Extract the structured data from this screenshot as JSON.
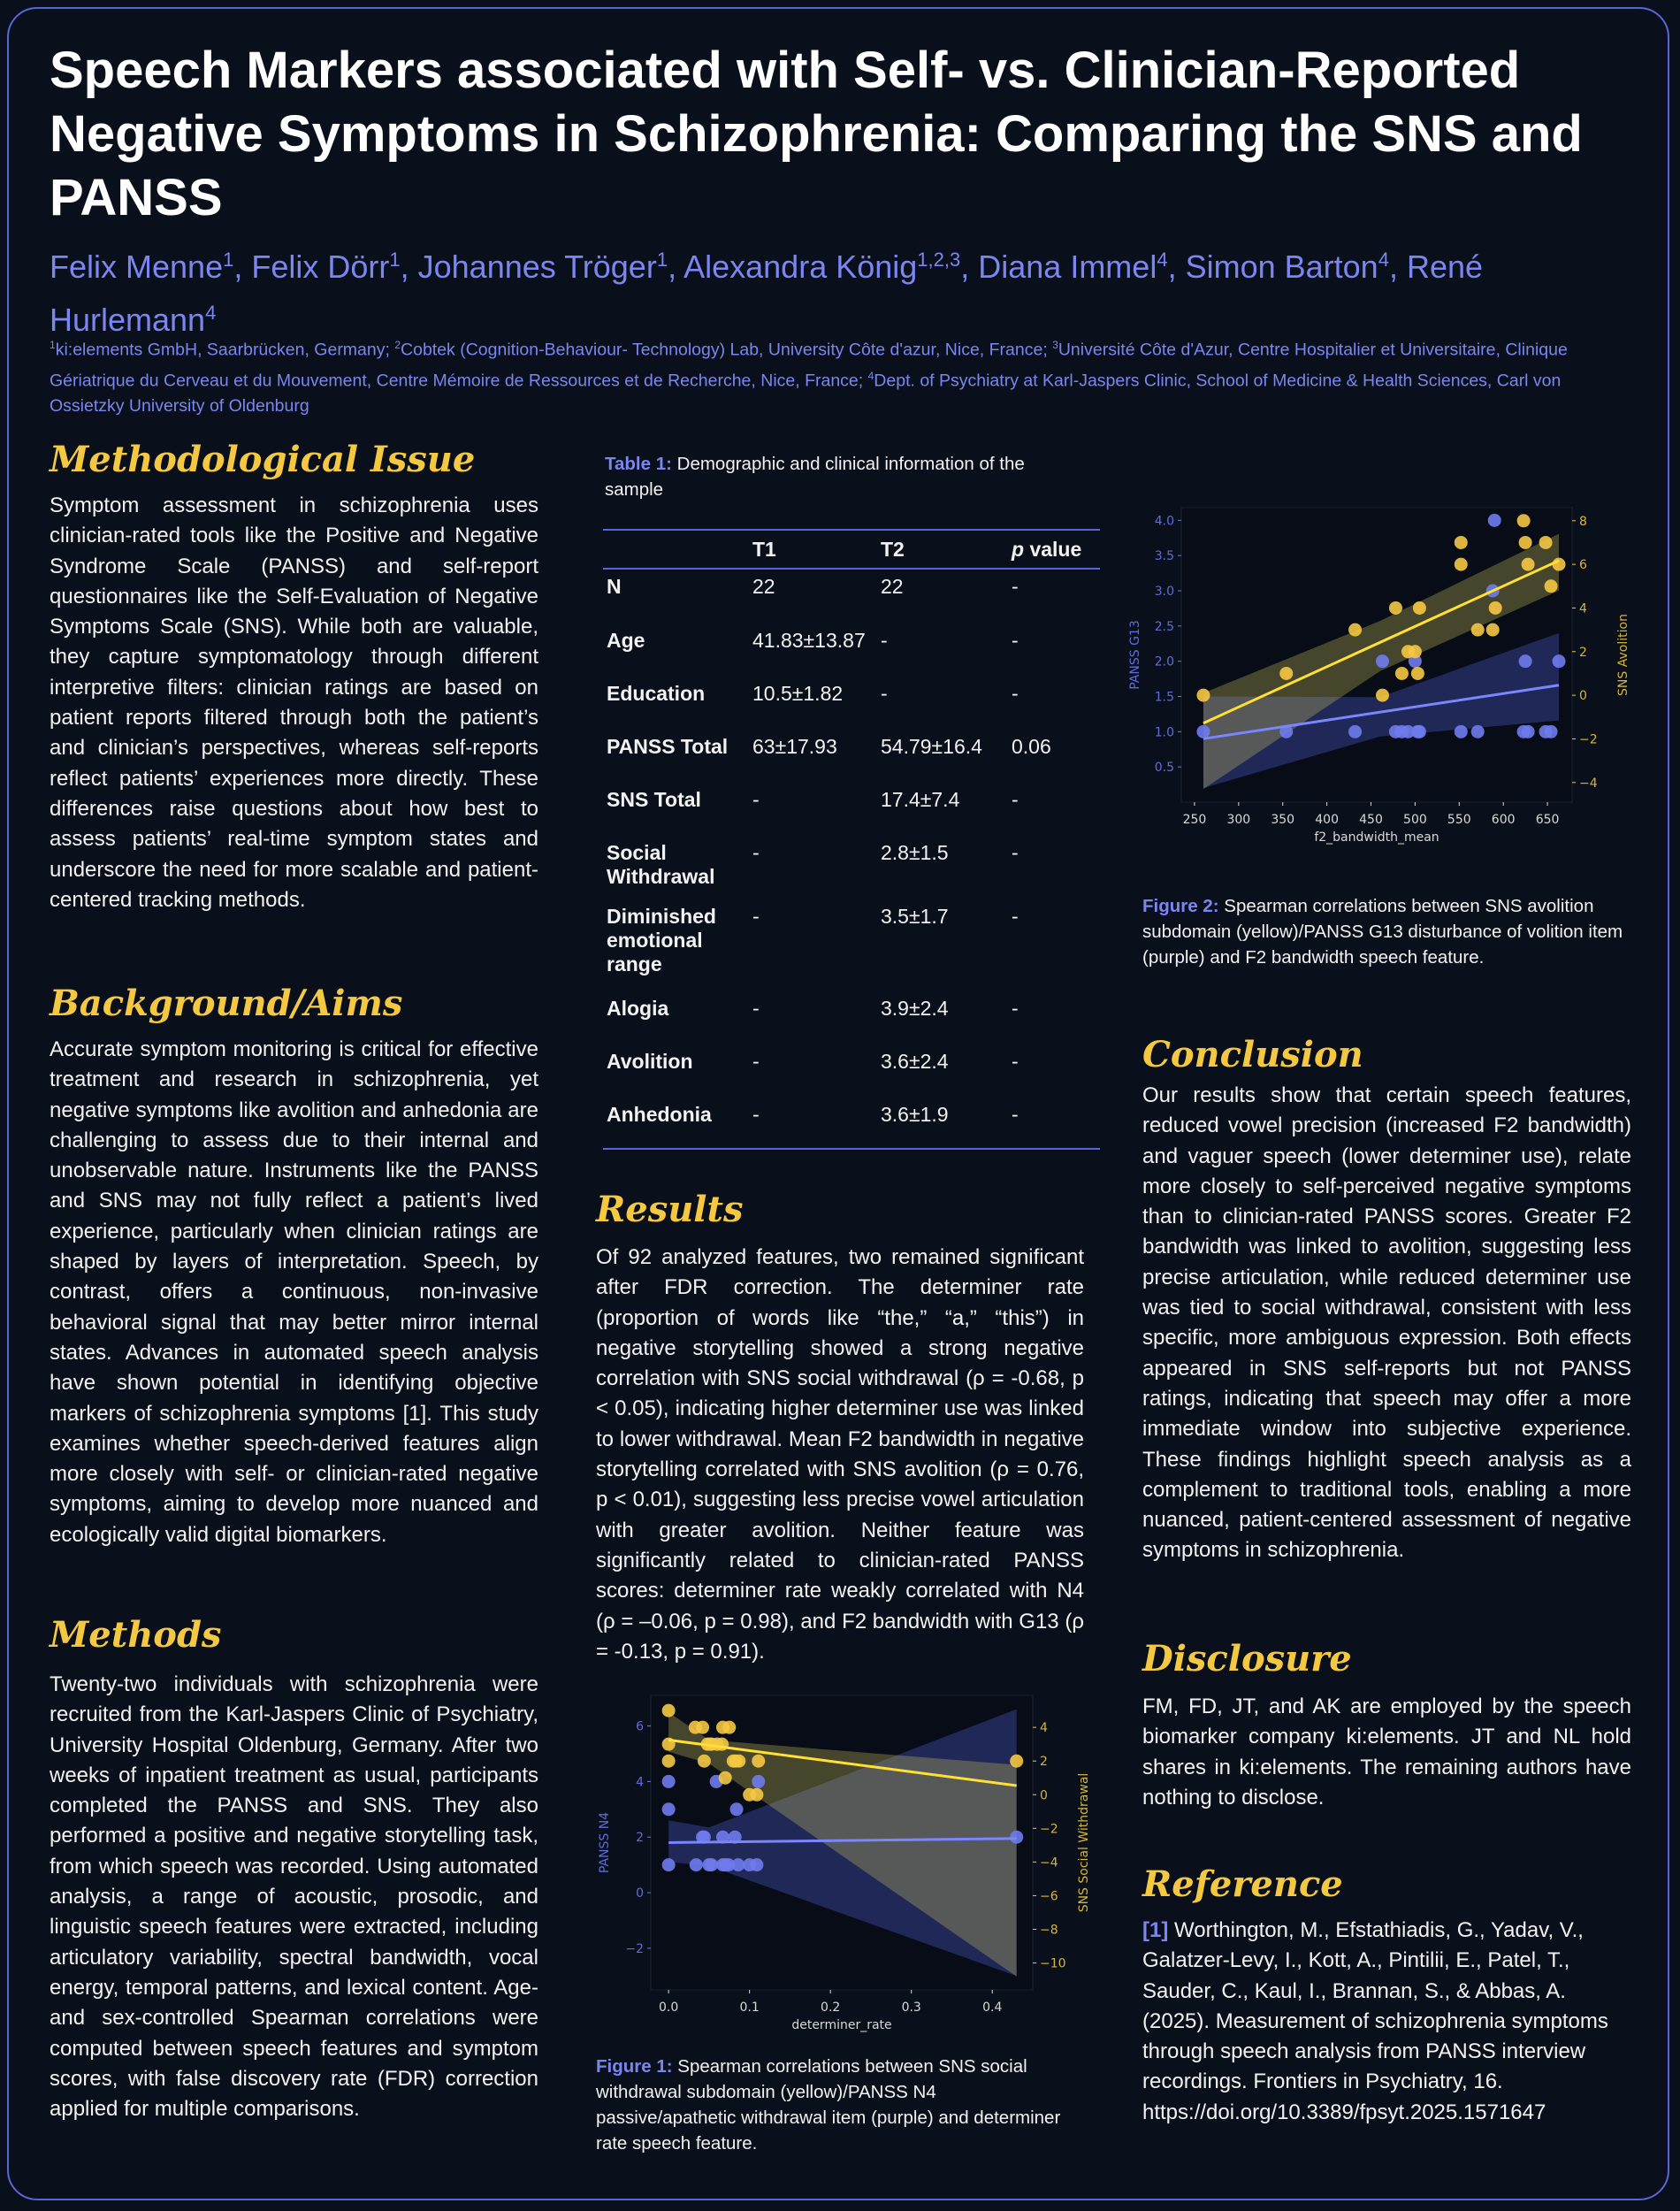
{
  "title": "Speech Markers associated with Self- vs. Clinician-Reported Negative Symptoms in Schizophrenia: Comparing the SNS and PANSS",
  "authors": [
    {
      "name": "Felix Menne",
      "aff": "1"
    },
    {
      "name": "Felix Dörr",
      "aff": "1"
    },
    {
      "name": "Johannes Tröger",
      "aff": "1"
    },
    {
      "name": "Alexandra König",
      "aff": "1,2,3"
    },
    {
      "name": "Diana Immel",
      "aff": "4"
    },
    {
      "name": "Simon Barton",
      "aff": "4"
    },
    {
      "name": "René Hurlemann",
      "aff": "4"
    }
  ],
  "affiliations": [
    {
      "num": "1",
      "text": "ki:elements GmbH, Saarbrücken, Germany; "
    },
    {
      "num": "2",
      "text": "Cobtek (Cognition-Behaviour- Technology) Lab, University Côte d'azur, Nice, France; "
    },
    {
      "num": "3",
      "text": "Université Côte d'Azur, Centre Hospitalier et Universitaire, Clinique Gériatrique du Cerveau et du Mouvement, Centre Mémoire de Ressources et de Recherche, Nice, France; "
    },
    {
      "num": "4",
      "text": "Dept. of Psychiatry at Karl-Jaspers Clinic, School of Medicine & Health Sciences, Carl von Ossietzky University of Oldenburg"
    }
  ],
  "sections": {
    "methodological": {
      "heading": "Methodological Issue",
      "text": "Symptom assessment in schizophrenia uses clinician-rated tools like the Positive and Negative Syndrome Scale (PANSS) and self-report questionnaires like the Self-Evaluation of Negative Symptoms Scale (SNS). While both are valuable, they capture symptomatology through different interpretive filters: clinician ratings are based on patient reports filtered through both the patient’s and clinician’s perspectives, whereas self-reports reflect patients’ experiences more directly. These differences raise questions about how best to assess patients’ real-time symptom states and underscore the need for more scalable and patient-centered tracking methods."
    },
    "background": {
      "heading": "Background/Aims",
      "text": "Accurate symptom monitoring is critical for effective treatment and research in schizophrenia, yet negative symptoms like avolition and anhedonia are challenging to assess due to their internal and unobservable nature. Instruments like the PANSS and SNS may not fully reflect a patient’s lived experience, particularly when clinician ratings are shaped by layers of interpretation. Speech, by contrast, offers a continuous, non-invasive behavioral signal that may better mirror internal states. Advances in automated speech analysis have shown potential in identifying objective markers of schizophrenia symptoms [1]. This study examines whether speech-derived features align more closely with self- or clinician-rated negative symptoms, aiming to develop more nuanced and ecologically valid digital biomarkers."
    },
    "methods": {
      "heading": "Methods",
      "text": "Twenty-two individuals with schizophrenia were recruited from the Karl-Jaspers Clinic of Psychiatry, University Hospital Oldenburg, Germany. After two weeks of inpatient treatment as usual, participants completed the PANSS and SNS. They also performed a positive and negative storytelling task, from which speech was recorded. Using automated analysis, a range of acoustic, prosodic, and linguistic speech features were extracted, including articulatory variability, spectral bandwidth, vocal energy, temporal patterns, and lexical content. Age- and sex-controlled Spearman correlations were computed between speech features and symptom scores, with false discovery rate (FDR) correction applied for multiple comparisons."
    },
    "results": {
      "heading": "Results",
      "text": "Of 92 analyzed features, two remained significant after FDR correction. The determiner rate (proportion of words like “the,” “a,” “this”) in negative storytelling showed a strong negative correlation with SNS social withdrawal (ρ = -0.68, p < 0.05), indicating higher determiner use was linked to lower withdrawal. Mean F2 bandwidth in negative storytelling correlated with SNS avolition (ρ = 0.76, p < 0.01), suggesting less precise vowel articulation with greater avolition. Neither feature was significantly related to clinician-rated PANSS scores: determiner rate weakly correlated with N4 (ρ = –0.06, p = 0.98), and F2 bandwidth with G13 (ρ = -0.13, p = 0.91)."
    },
    "conclusion": {
      "heading": "Conclusion",
      "text": "Our results show that certain speech features, reduced vowel precision (increased F2 bandwidth) and vaguer speech (lower determiner use), relate more closely to self-perceived negative symptoms than to clinician-rated PANSS scores. Greater F2 bandwidth was linked to avolition, suggesting less precise articulation, while reduced determiner use was tied to social withdrawal, consistent with less specific, more ambiguous expression. Both effects appeared in SNS self-reports but not PANSS ratings, indicating that speech may offer a more immediate window into subjective experience. These findings highlight speech analysis as a complement to traditional tools, enabling a more nuanced, patient-centered assessment of negative symptoms in schizophrenia."
    },
    "disclosure": {
      "heading": "Disclosure",
      "text": "FM, FD, JT, and AK are employed by the speech biomarker company ki:elements. JT and NL hold shares in  ki:elements. The remaining authors have nothing to disclose."
    },
    "reference": {
      "heading": "Reference",
      "num": "[1]",
      "text": " Worthington, M., Efstathiadis, G., Yadav, V., Galatzer-Levy, I., Kott, A., Pintilii, E., Patel, T., Sauder, C., Kaul, I., Brannan, S., & Abbas, A. (2025). Measurement of schizophrenia symptoms through speech analysis from PANSS interview recordings. Frontiers in Psychiatry, 16. https://doi.org/10.3389/fpsyt.2025.1571647"
    }
  },
  "table1": {
    "caption_label": "Table 1:",
    "caption_text": " Demographic and clinical information of the sample",
    "headers": [
      "",
      "T1",
      "T2",
      "p value"
    ],
    "rows": [
      [
        "N",
        "22",
        "22",
        "-"
      ],
      [
        "Age",
        "41.83±13.87",
        "-",
        "-"
      ],
      [
        "Education",
        "10.5±1.82",
        "-",
        "-"
      ],
      [
        "PANSS Total",
        "63±17.93",
        "54.79±16.4",
        "0.06"
      ],
      [
        "SNS Total",
        "-",
        "17.4±7.4",
        "-"
      ],
      [
        "Social Withdrawal",
        "-",
        "2.8±1.5",
        "-"
      ],
      [
        "Diminished emotional range",
        "-",
        "3.5±1.7",
        "-"
      ],
      [
        "Alogia",
        "-",
        "3.9±2.4",
        "-"
      ],
      [
        "Avolition",
        "-",
        "3.6±2.4",
        "-"
      ],
      [
        "Anhedonia",
        "-",
        "3.6±1.9",
        "-"
      ]
    ]
  },
  "figure1_caption": {
    "label": "Figure 1:",
    "text": " Spearman correlations between SNS social withdrawal subdomain (yellow)/PANSS N4 passive/apathetic withdrawal item (purple) and determiner rate speech feature."
  },
  "figure2_caption": {
    "label": "Figure 2:",
    "text": " Spearman correlations between SNS avolition subdomain (yellow)/PANSS G13 disturbance of volition item (purple) and F2 bandwidth speech feature."
  },
  "colors": {
    "background": "#0a101b",
    "accent_purple": "#6f7bec",
    "accent_yellow": "#f5c842",
    "border": "#5a66d6"
  },
  "chart_data": [
    {
      "id": "figure1",
      "type": "scatter",
      "xlabel": "determiner_rate",
      "ylabel_left": "PANSS N4",
      "ylabel_right": "SNS Social Withdrawal",
      "xlim": [
        -0.022,
        0.45
      ],
      "ylim_left": [
        -3.5,
        7.1
      ],
      "ylim_right": [
        -11.6,
        5.9
      ],
      "xticks": [
        0.0,
        0.1,
        0.2,
        0.3,
        0.4
      ],
      "xtick_labels": [
        "0.0",
        "0.1",
        "0.2",
        "0.3",
        "0.4"
      ],
      "yticks_left": [
        -2,
        0,
        2,
        4,
        6
      ],
      "ytick_labels_left": [
        "−2",
        "0",
        "2",
        "4",
        "6"
      ],
      "yticks_right": [
        -10,
        -8,
        -6,
        -4,
        -2,
        0,
        2,
        4
      ],
      "ytick_labels_right": [
        "−10",
        "−8",
        "−6",
        "−4",
        "−2",
        "0",
        "2",
        "4"
      ],
      "grid": false,
      "series": [
        {
          "axis": "left",
          "color": "#6f7bec",
          "x": [
            0,
            0,
            0,
            0.034,
            0.042,
            0.044,
            0.05,
            0.053,
            0.059,
            0.067,
            0.067,
            0.07,
            0.074,
            0.082,
            0.084,
            0.086,
            0.1,
            0.109,
            0.111,
            0.43
          ],
          "y": [
            4,
            3,
            1,
            1,
            2,
            2,
            1,
            1,
            4,
            2,
            1,
            1,
            1,
            2,
            3,
            1,
            1,
            1,
            4,
            2
          ],
          "fit": {
            "x": [
              0,
              0.43
            ],
            "y": [
              1.8,
              1.95
            ]
          },
          "ci": {
            "x": [
              0,
              0.05,
              0.43
            ],
            "lower": [
              1.1,
              0.96,
              -3.0
            ],
            "upper": [
              2.6,
              2.35,
              6.6
            ]
          }
        },
        {
          "axis": "right",
          "color": "#f5c842",
          "x": [
            0,
            0,
            0,
            0.033,
            0.042,
            0.044,
            0.048,
            0.051,
            0.053,
            0.06,
            0.066,
            0.067,
            0.07,
            0.075,
            0.08,
            0.083,
            0.087,
            0.1,
            0.109,
            0.111,
            0.43
          ],
          "y": [
            5,
            3,
            2,
            4,
            4,
            2,
            3,
            3,
            3,
            3,
            3,
            4,
            1,
            4,
            2,
            2,
            2,
            0,
            0,
            2,
            2
          ],
          "fit": {
            "x": [
              0,
              0.43
            ],
            "y": [
              3.25,
              0.54
            ]
          },
          "ci": {
            "x": [
              0,
              0.05,
              0.43
            ],
            "lower": [
              2.55,
              1.85,
              -10.8
            ],
            "upper": [
              4.9,
              3.25,
              1.77
            ]
          }
        }
      ]
    },
    {
      "id": "figure2",
      "type": "scatter",
      "xlabel": "f2_bandwidth_mean",
      "ylabel_left": "PANSS G13",
      "ylabel_right": "SNS Avolition",
      "xlim": [
        235,
        678
      ],
      "ylim_left": [
        0.0,
        4.18
      ],
      "ylim_right": [
        -4.9,
        8.6
      ],
      "xticks": [
        250,
        300,
        350,
        400,
        450,
        500,
        550,
        600,
        650
      ],
      "xtick_labels": [
        "250",
        "300",
        "350",
        "400",
        "450",
        "500",
        "550",
        "600",
        "650"
      ],
      "yticks_left": [
        0.5,
        1.0,
        1.5,
        2.0,
        2.5,
        3.0,
        3.5,
        4.0
      ],
      "ytick_labels_left": [
        "0.5",
        "1.0",
        "1.5",
        "2.0",
        "2.5",
        "3.0",
        "3.5",
        "4.0"
      ],
      "yticks_right": [
        -4,
        -2,
        0,
        2,
        4,
        6,
        8
      ],
      "ytick_labels_right": [
        "−4",
        "−2",
        "0",
        "2",
        "4",
        "6",
        "8"
      ],
      "grid": false,
      "series": [
        {
          "axis": "left",
          "color": "#6f7bec",
          "x": [
            260,
            354,
            432,
            463,
            478,
            485,
            492,
            500,
            503,
            505,
            552,
            571,
            590,
            588,
            623,
            628,
            625,
            648,
            654,
            663
          ],
          "y": [
            1,
            1,
            1,
            2,
            1,
            1,
            1,
            2,
            1,
            1,
            1,
            1,
            4,
            3,
            1,
            1,
            2,
            1,
            1,
            2
          ],
          "fit": {
            "x": [
              260,
              663
            ],
            "y": [
              0.9,
              1.66
            ]
          },
          "ci": {
            "x": [
              260,
              460,
              663
            ],
            "lower": [
              0.2,
              0.93,
              1.16
            ],
            "upper": [
              1.5,
              1.49,
              2.4
            ]
          }
        },
        {
          "axis": "right",
          "color": "#f5c842",
          "x": [
            260,
            354,
            432,
            463,
            478,
            485,
            492,
            500,
            503,
            505,
            552,
            552,
            571,
            588,
            591,
            623,
            625,
            628,
            648,
            654,
            663
          ],
          "y": [
            0,
            1,
            3,
            0,
            4,
            1,
            2,
            2,
            1,
            4,
            7,
            6,
            3,
            3,
            4,
            8,
            7,
            6,
            7,
            5,
            6
          ],
          "fit": {
            "x": [
              260,
              663
            ],
            "y": [
              -1.28,
              6.17
            ]
          },
          "ci": {
            "x": [
              260,
              460,
              663
            ],
            "lower": [
              -4.3,
              1.1,
              4.8
            ],
            "upper": [
              0.1,
              3.4,
              7.4
            ]
          }
        }
      ]
    }
  ]
}
